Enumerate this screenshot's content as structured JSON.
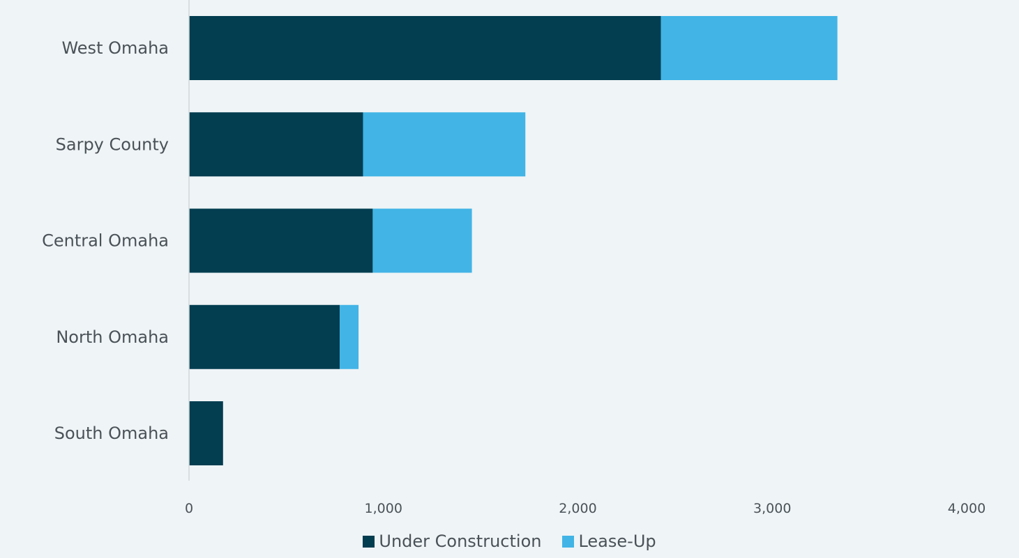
{
  "chart_data": {
    "type": "bar",
    "orientation": "horizontal",
    "stacked": true,
    "categories": [
      "West Omaha",
      "Sarpy County",
      "Central Omaha",
      "North Omaha",
      "South Omaha"
    ],
    "series": [
      {
        "name": "Under Construction",
        "color": "#023d50",
        "values": [
          2427,
          895,
          945,
          775,
          175
        ]
      },
      {
        "name": "Lease-Up",
        "color": "#42b4e6",
        "values": [
          908,
          835,
          510,
          97,
          0
        ]
      }
    ],
    "xlim": [
      0,
      4000
    ],
    "xticks": [
      0,
      1000,
      2000,
      3000,
      4000
    ],
    "xtick_labels": [
      "0",
      "1,000",
      "2,000",
      "3,000",
      "4,000"
    ],
    "title": "",
    "xlabel": "",
    "ylabel": "",
    "grid": false,
    "legend_position": "bottom"
  }
}
